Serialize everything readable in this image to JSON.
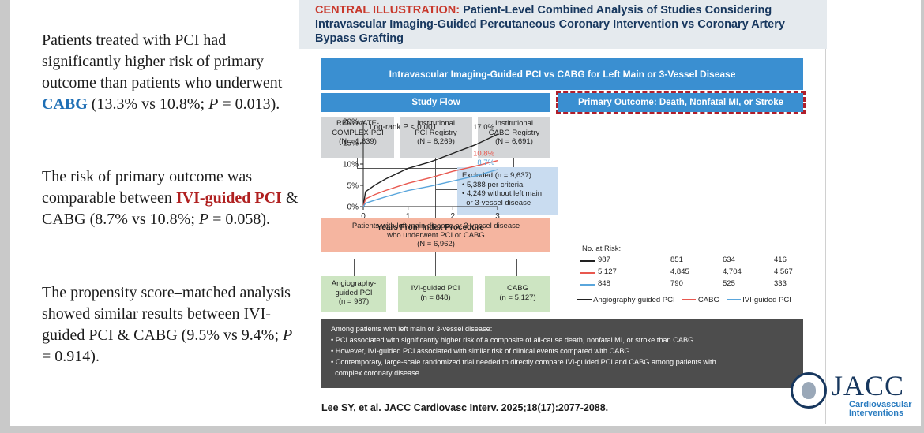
{
  "left_text": {
    "p1": {
      "a": "Patients treated with PCI had significantly higher risk of primary outcome than patients who underwent ",
      "b": "CABG",
      "c": " (13.3% vs 10.8%; ",
      "d": "P",
      "e": " = 0.013)."
    },
    "p2": {
      "a": "The risk of primary outcome was comparable between ",
      "b": "IVI-guided PCI",
      "c": " & CABG (8.7% vs 10.8%; ",
      "d": "P",
      "e": " = 0.058)."
    },
    "p3": {
      "a": "The propensity score–matched analysis showed similar results between IVI-guided PCI & CABG (9.5% vs 9.4%; ",
      "d": "P",
      "e": " = 0.914)."
    }
  },
  "illustration": {
    "kicker": "CENTRAL ILLUSTRATION:",
    "title": "Patient-Level Combined Analysis of Studies Considering Intravascular Imaging-Guided Percutaneous Coronary Intervention vs Coronary Artery Bypass Grafting",
    "main_bar": "Intravascular Imaging-Guided PCI vs CABG  for Left Main or 3-Vessel Disease",
    "flow_bar": "Study Flow",
    "outcome_bar": "Primary Outcome: Death, Nonfatal MI, or Stroke",
    "sources": [
      {
        "l1": "RENOVATE-",
        "l2": "COMPLEX-PCI",
        "l3": "(N = 1,639)"
      },
      {
        "l1": "Institutional",
        "l2": "PCI Registry",
        "l3": "(N = 8,269)"
      },
      {
        "l1": "Institutional",
        "l2": "CABG Registry",
        "l3": "(N = 6,691)"
      }
    ],
    "excluded": {
      "l1": "Excluded (n = 9,637)",
      "l2": "• 5,388 per criteria",
      "l3": "• 4,249 without left main",
      "l4": "  or 3-vessel disease"
    },
    "cohort": {
      "l1": "Patients with left main disease or 3-vessel disease",
      "l2": "who underwent PCI or CABG",
      "l3": "(N = 6,962)"
    },
    "groups": [
      {
        "l1": "Angiography-",
        "l2": "guided PCI",
        "l3": "(n = 987)"
      },
      {
        "l1": "IVI-guided PCI",
        "l2": "(n = 848)"
      },
      {
        "l1": "CABG",
        "l2": "(n = 5,127)"
      }
    ],
    "summary": {
      "heading": "Among patients with left main or 3-vessel disease:",
      "bullets": [
        "• PCI associated with significantly higher risk of a composite of all-cause death, nonfatal MI, or stroke than CABG.",
        "• However, IVI-guided PCI associated with similar risk of clinical events compared with CABG.",
        "• Contemporary, large-scale randomized trial needed to directly compare IVI-guided PCI and CABG among patients with",
        "  complex coronary disease."
      ]
    },
    "citation": "Lee SY, et al. JACC Cardiovasc Interv. 2025;18(17):2077-2088."
  },
  "journal": {
    "name": "JACC",
    "sub1": "Cardiovascular",
    "sub2": "Interventions"
  },
  "chart_data": {
    "type": "line",
    "xlabel": "Years From Index Procedure",
    "annotation": "Log-rank P < 0.001",
    "x_ticks": [
      "0",
      "1",
      "2",
      "3"
    ],
    "y_ticks": [
      "0%",
      "5%",
      "10%",
      "15%",
      "20%"
    ],
    "xlim": [
      0,
      3
    ],
    "ylim": [
      0,
      20
    ],
    "series": [
      {
        "name": "Angiography-guided PCI",
        "color": "#222222",
        "end_label": "17.0%",
        "x": [
          0,
          0.05,
          0.25,
          0.5,
          1,
          1.5,
          2,
          2.5,
          3
        ],
        "y": [
          0,
          3.5,
          5.0,
          6.5,
          9.0,
          10.5,
          12.5,
          14.5,
          17.0
        ]
      },
      {
        "name": "CABG",
        "color": "#e8584f",
        "end_label": "10.8%",
        "x": [
          0,
          0.05,
          0.25,
          0.5,
          1,
          1.5,
          2,
          2.5,
          3
        ],
        "y": [
          0,
          1.8,
          2.8,
          3.8,
          5.5,
          6.8,
          8.3,
          9.5,
          10.8
        ]
      },
      {
        "name": "IVI-guided PCI",
        "color": "#5aa6dc",
        "end_label": "8.7%",
        "x": [
          0,
          0.05,
          0.25,
          0.5,
          1,
          1.5,
          2,
          2.5,
          3
        ],
        "y": [
          0,
          0.8,
          1.5,
          2.3,
          3.8,
          4.8,
          6.0,
          7.2,
          8.7
        ]
      }
    ],
    "risk_table": {
      "title": "No. at Risk:",
      "rows": [
        {
          "color": "#222222",
          "values": [
            "987",
            "851",
            "634",
            "416"
          ]
        },
        {
          "color": "#e8584f",
          "values": [
            "5,127",
            "4,845",
            "4,704",
            "4,567"
          ]
        },
        {
          "color": "#5aa6dc",
          "values": [
            "848",
            "790",
            "525",
            "333"
          ]
        }
      ]
    }
  }
}
